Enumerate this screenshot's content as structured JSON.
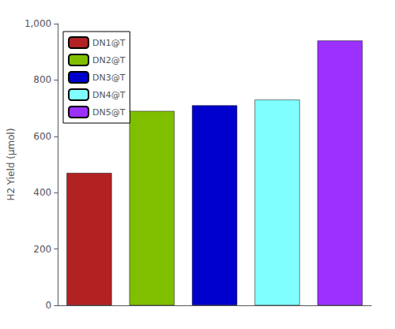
{
  "chart_data": {
    "type": "bar",
    "categories": [
      "DN1@T",
      "DN2@T",
      "DN3@T",
      "DN4@T",
      "DN5@T"
    ],
    "values": [
      470,
      690,
      710,
      730,
      940
    ],
    "colors": [
      "#B22222",
      "#7FBF00",
      "#0000CC",
      "#7FFFFF",
      "#9B30FF"
    ],
    "ylabel": "H2 Yield (μmol)",
    "ylim": [
      0,
      1000
    ],
    "yticks": [
      0,
      200,
      400,
      600,
      800,
      1000
    ],
    "grid": false,
    "legend": "upper left",
    "tick_labels": "y"
  }
}
